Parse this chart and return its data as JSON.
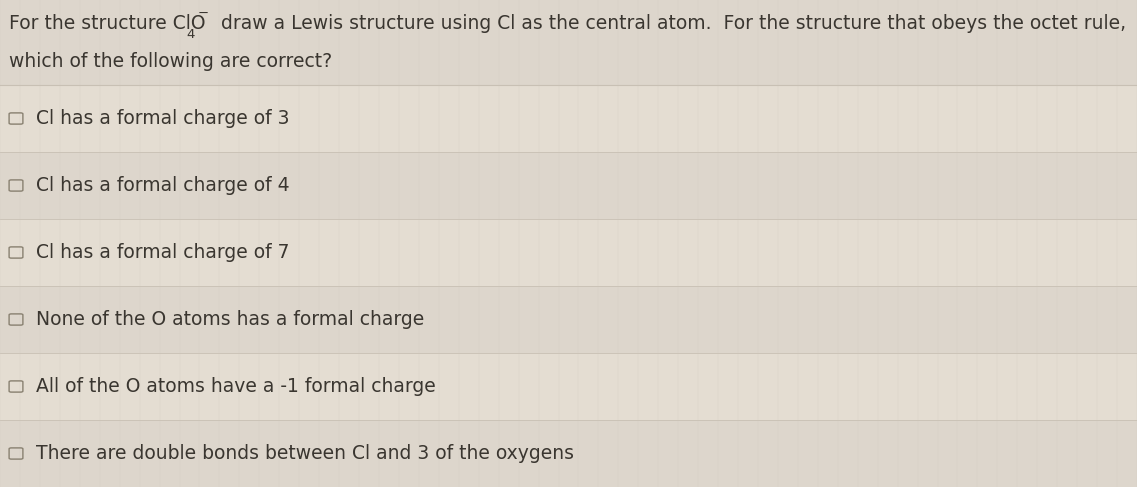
{
  "background_color": "#e8e2d8",
  "row_color_odd": "#e4ddd2",
  "row_color_even": "#ddd6cc",
  "header_bg": "#ddd6cc",
  "text_color": "#3a3630",
  "line_color": "#c8c0b4",
  "header_fontsize": 13.5,
  "option_fontsize": 13.5,
  "header_line1_pre": "For the structure ClO",
  "header_subscript": "4",
  "header_superscript": "−",
  "header_line1_post": "  draw a Lewis structure using Cl as the central atom.  For the structure that obeys the octet rule,",
  "header_line2": "which of the following are correct?",
  "options": [
    "Cl has a formal charge of 3",
    "Cl has a formal charge of 4",
    "Cl has a formal charge of 7",
    "None of the O atoms has a formal charge",
    "All of the O atoms have a -1 formal charge",
    "There are double bonds between Cl and 3 of the oxygens"
  ],
  "checkbox_color": "#888070",
  "figwidth": 11.37,
  "figheight": 4.87,
  "dpi": 100
}
